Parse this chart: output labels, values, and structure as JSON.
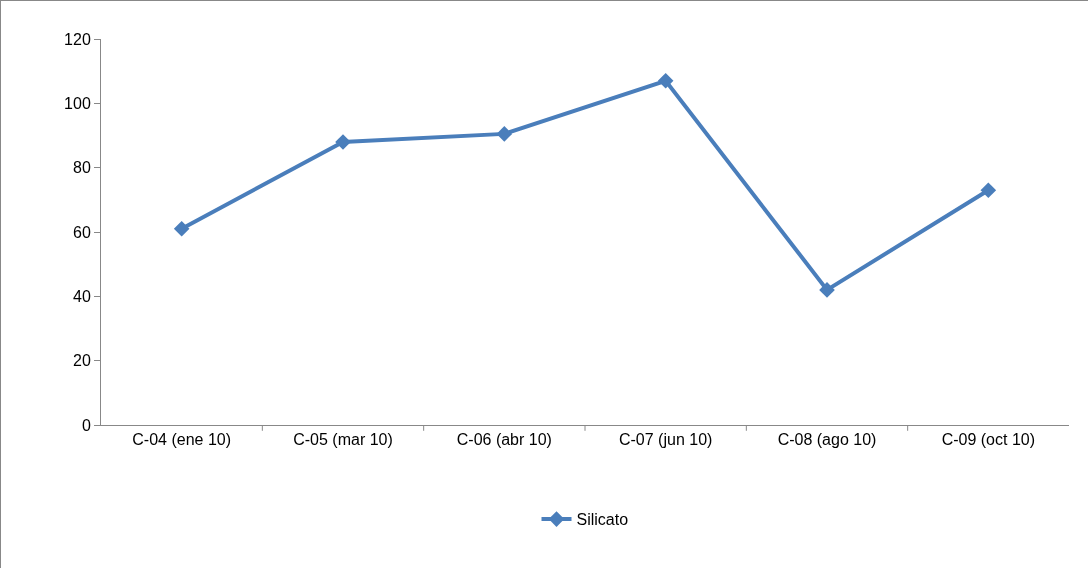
{
  "chart_data": {
    "type": "line",
    "categories": [
      "C-04 (ene 10)",
      "C-05 (mar 10)",
      "C-06 (abr 10)",
      "C-07 (jun 10)",
      "C-08 (ago 10)",
      "C-09 (oct 10)"
    ],
    "series": [
      {
        "name": "Silicato",
        "color": "#4a7ebb",
        "values": [
          61,
          88,
          90.5,
          107,
          42,
          73
        ]
      }
    ],
    "ylim": [
      0,
      120
    ],
    "yticks": [
      0,
      20,
      40,
      60,
      80,
      100,
      120
    ],
    "grid": false,
    "legend": "bottom",
    "marker": "diamond",
    "line_style": "solid"
  }
}
